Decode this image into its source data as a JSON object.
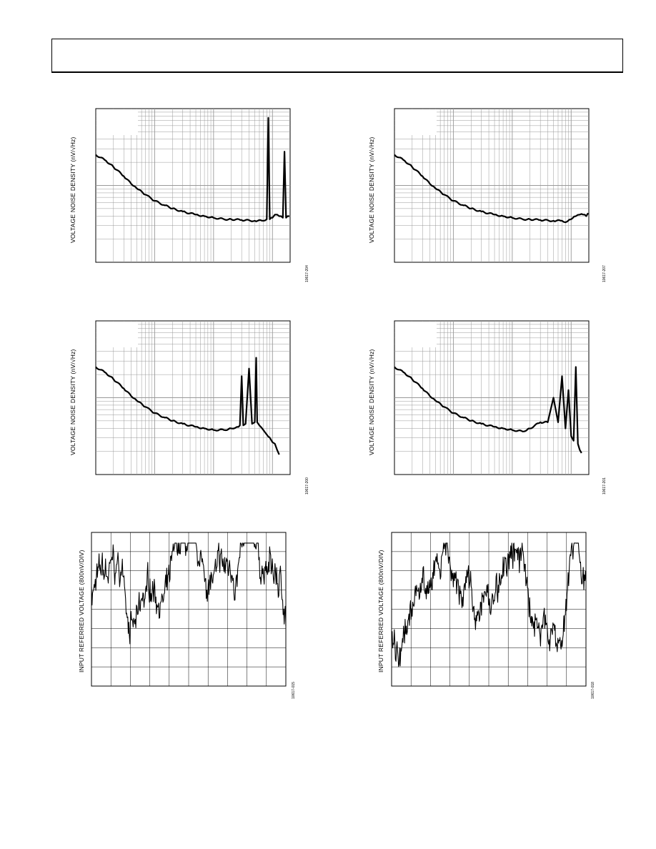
{
  "page": {
    "header_text": ""
  },
  "chart_data": [
    {
      "type": "line",
      "kind": "log",
      "title": "",
      "ylabel": "VOLTAGE NOISE DENSITY (nV/√Hz)",
      "figure_id": "10617-204",
      "series": [
        {
          "x": [
            1,
            1.5,
            2,
            3,
            4,
            5,
            7,
            10,
            15,
            20,
            30,
            50,
            70,
            100,
            150,
            200,
            300,
            500,
            700,
            800,
            850,
            900,
            950,
            1000,
            1100,
            1200,
            1300,
            1400,
            1500,
            1600,
            1700,
            1800,
            1900,
            2000
          ],
          "y": [
            0.3,
            0.34,
            0.38,
            0.44,
            0.49,
            0.52,
            0.56,
            0.6,
            0.63,
            0.65,
            0.67,
            0.69,
            0.7,
            0.71,
            0.72,
            0.72,
            0.725,
            0.73,
            0.73,
            0.72,
            0.06,
            0.72,
            0.71,
            0.71,
            0.69,
            0.69,
            0.7,
            0.7,
            0.71,
            0.28,
            0.71,
            0.7,
            0.7,
            0.7
          ]
        }
      ]
    },
    {
      "type": "line",
      "kind": "log",
      "title": "",
      "ylabel": "VOLTAGE NOISE DENSITY (nV/√Hz)",
      "figure_id": "10617-207",
      "series": [
        {
          "x": [
            1,
            1.5,
            2,
            3,
            4,
            5,
            7,
            10,
            15,
            20,
            30,
            50,
            70,
            100,
            150,
            200,
            300,
            500,
            700,
            800,
            1000,
            1200,
            1400,
            1600,
            1800,
            2000
          ],
          "y": [
            0.3,
            0.34,
            0.38,
            0.44,
            0.49,
            0.52,
            0.56,
            0.6,
            0.63,
            0.65,
            0.67,
            0.69,
            0.7,
            0.71,
            0.72,
            0.72,
            0.725,
            0.73,
            0.73,
            0.74,
            0.72,
            0.7,
            0.69,
            0.69,
            0.7,
            0.68
          ]
        }
      ]
    },
    {
      "type": "line",
      "kind": "log",
      "title": "",
      "ylabel": "VOLTAGE NOISE DENSITY (nV/√Hz)",
      "figure_id": "10617-200",
      "series": [
        {
          "x": [
            1,
            1.5,
            2,
            3,
            4,
            5,
            7,
            10,
            15,
            20,
            30,
            50,
            70,
            100,
            150,
            200,
            250,
            280,
            300,
            320,
            350,
            400,
            450,
            500,
            530,
            550,
            600,
            700,
            800,
            900,
            1000,
            1100,
            1200,
            1300
          ],
          "y": [
            0.3,
            0.34,
            0.38,
            0.44,
            0.49,
            0.52,
            0.56,
            0.6,
            0.63,
            0.65,
            0.67,
            0.69,
            0.7,
            0.71,
            0.71,
            0.7,
            0.69,
            0.68,
            0.36,
            0.68,
            0.67,
            0.31,
            0.67,
            0.66,
            0.24,
            0.66,
            0.68,
            0.71,
            0.74,
            0.76,
            0.79,
            0.8,
            0.84,
            0.87
          ]
        }
      ]
    },
    {
      "type": "line",
      "kind": "log",
      "title": "",
      "ylabel": "VOLTAGE NOISE DENSITY (nV/√Hz)",
      "figure_id": "10617-201",
      "series": [
        {
          "x": [
            1,
            1.5,
            2,
            3,
            4,
            5,
            7,
            10,
            15,
            20,
            30,
            50,
            70,
            100,
            150,
            200,
            300,
            400,
            500,
            600,
            700,
            800,
            900,
            1000,
            1100,
            1200,
            1300,
            1400,
            1500
          ],
          "y": [
            0.3,
            0.34,
            0.38,
            0.44,
            0.49,
            0.52,
            0.56,
            0.6,
            0.63,
            0.65,
            0.67,
            0.69,
            0.7,
            0.71,
            0.72,
            0.7,
            0.66,
            0.66,
            0.5,
            0.66,
            0.36,
            0.7,
            0.45,
            0.75,
            0.78,
            0.3,
            0.8,
            0.84,
            0.86
          ]
        }
      ]
    },
    {
      "type": "line",
      "kind": "time",
      "title": "",
      "ylabel": "INPUT REFERRED VOLTAGE (800nV/DIV)",
      "figure_id": "10617-015",
      "seed": 7
    },
    {
      "type": "line",
      "kind": "time",
      "title": "",
      "ylabel": "INPUT REFERRED VOLTAGE (800nV/DIV)",
      "figure_id": "10617-018",
      "seed": 23
    }
  ]
}
